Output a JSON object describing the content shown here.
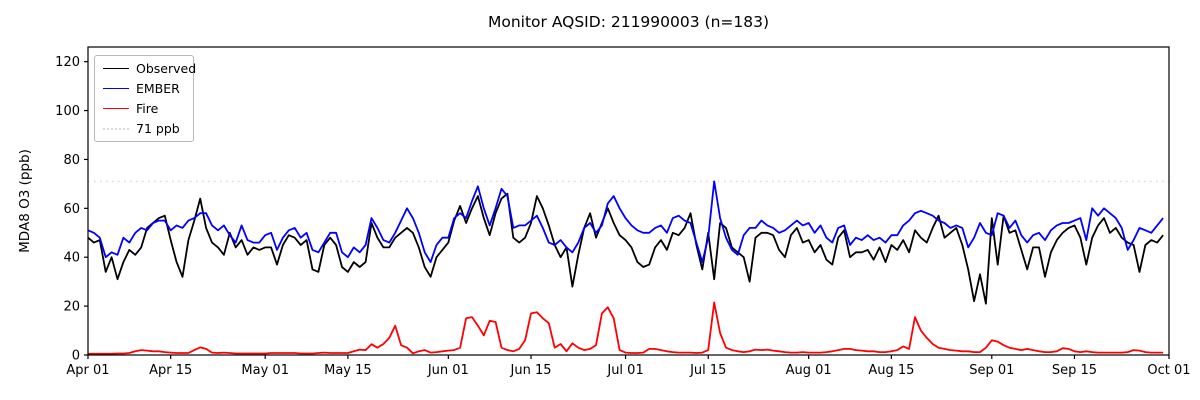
{
  "chart_data": {
    "type": "line",
    "title": "Monitor AQSID: 211990003 (n=183)",
    "xlabel": "",
    "ylabel": "MDA8 O3 (ppb)",
    "ylim": [
      0,
      126
    ],
    "yticks": [
      0,
      20,
      40,
      60,
      80,
      100,
      120
    ],
    "xtick_labels": [
      "Apr 01",
      "Apr 15",
      "May 01",
      "May 15",
      "Jun 01",
      "Jun 15",
      "Jul 01",
      "Jul 15",
      "Aug 01",
      "Aug 15",
      "Sep 01",
      "Sep 15",
      "Oct 01"
    ],
    "xtick_days": [
      0,
      14,
      30,
      44,
      61,
      75,
      91,
      105,
      122,
      136,
      153,
      167,
      183
    ],
    "x_range_days": 183,
    "n_points": 183,
    "date_start": "Apr 01",
    "date_end": "Sep 30",
    "grid": false,
    "legend_position": "upper left",
    "axis_color": "#000000",
    "threshold": {
      "label": "71 ppb",
      "value": 71,
      "color": "#d9d9d9",
      "style": "dotted"
    },
    "legend": [
      {
        "label": "Observed",
        "color": "#000000",
        "style": "solid"
      },
      {
        "label": "EMBER",
        "color": "#0000ff",
        "style": "solid"
      },
      {
        "label": "Fire",
        "color": "#ff0000",
        "style": "solid"
      },
      {
        "label": "71 ppb",
        "color": "#d9d9d9",
        "style": "dotted"
      }
    ],
    "series": [
      {
        "name": "Observed",
        "color": "#000000",
        "values": [
          48,
          46,
          47,
          34,
          40,
          31,
          38,
          43,
          41,
          44,
          52,
          54,
          56,
          57,
          47,
          38,
          32,
          47,
          55,
          64,
          52,
          46,
          44,
          41,
          50,
          44,
          47,
          41,
          44,
          43,
          44,
          44,
          37,
          45,
          49,
          48,
          45,
          47,
          35,
          34,
          45,
          48,
          45,
          36,
          34,
          38,
          36,
          38,
          54,
          48,
          44,
          44,
          48,
          50,
          52,
          50,
          44,
          36,
          32,
          40,
          43,
          46,
          55,
          61,
          54,
          60,
          65,
          56,
          49,
          58,
          64,
          66,
          48,
          46,
          48,
          54,
          65,
          60,
          53,
          45,
          40,
          44,
          28,
          41,
          52,
          58,
          48,
          54,
          60,
          54,
          49,
          47,
          44,
          38,
          36,
          37,
          44,
          47,
          43,
          50,
          49,
          52,
          58,
          45,
          35,
          50,
          31,
          54,
          52,
          44,
          42,
          40,
          30,
          48,
          50,
          50,
          49,
          43,
          40,
          49,
          52,
          46,
          47,
          42,
          45,
          39,
          37,
          48,
          51,
          40,
          42,
          42,
          43,
          39,
          44,
          38,
          45,
          43,
          47,
          42,
          51,
          48,
          46,
          52,
          57,
          48,
          50,
          52,
          45,
          35,
          22,
          33,
          21,
          56,
          37,
          57,
          50,
          51,
          43,
          35,
          44,
          44,
          32,
          42,
          47,
          50,
          52,
          53,
          48,
          37,
          48,
          53,
          56,
          50,
          52,
          48,
          46,
          45,
          34,
          45,
          47,
          46,
          49
        ]
      },
      {
        "name": "EMBER",
        "color": "#0000ff",
        "values": [
          51,
          50,
          48,
          40,
          42,
          41,
          48,
          46,
          50,
          52,
          51,
          54,
          55,
          55,
          51,
          53,
          52,
          55,
          56,
          58,
          58,
          53,
          51,
          53,
          49,
          46,
          53,
          47,
          46,
          46,
          49,
          50,
          43,
          48,
          51,
          52,
          48,
          50,
          43,
          42,
          46,
          50,
          50,
          42,
          40,
          44,
          42,
          45,
          56,
          52,
          47,
          46,
          50,
          55,
          60,
          56,
          50,
          42,
          38,
          45,
          48,
          48,
          56,
          58,
          56,
          63,
          69,
          60,
          53,
          60,
          68,
          65,
          52,
          53,
          53,
          55,
          57,
          52,
          46,
          45,
          47,
          44,
          42,
          46,
          52,
          54,
          50,
          53,
          62,
          65,
          60,
          56,
          53,
          51,
          50,
          50,
          52,
          53,
          50,
          56,
          57,
          55,
          54,
          46,
          38,
          48,
          71,
          56,
          48,
          43,
          41,
          49,
          52,
          52,
          55,
          53,
          52,
          50,
          51,
          53,
          55,
          53,
          54,
          50,
          53,
          48,
          46,
          52,
          53,
          45,
          48,
          47,
          49,
          47,
          48,
          46,
          49,
          49,
          53,
          55,
          58,
          59,
          58,
          57,
          55,
          54,
          52,
          53,
          52,
          44,
          48,
          54,
          50,
          49,
          58,
          57,
          52,
          55,
          49,
          46,
          49,
          50,
          47,
          51,
          53,
          54,
          54,
          55,
          56,
          47,
          60,
          57,
          60,
          58,
          56,
          52,
          43,
          47,
          52,
          51,
          50,
          53,
          56
        ]
      },
      {
        "name": "Fire",
        "color": "#ff0000",
        "values": [
          0.5,
          0.5,
          0.5,
          0.5,
          0.5,
          0.6,
          0.6,
          0.8,
          1.5,
          2,
          1.8,
          1.5,
          1.5,
          1.2,
          1,
          0.8,
          0.8,
          0.8,
          2,
          3.1,
          2.5,
          1,
          0.8,
          1,
          0.8,
          0.6,
          0.6,
          0.6,
          0.6,
          0.6,
          0.6,
          0.8,
          0.8,
          0.8,
          0.8,
          0.8,
          0.6,
          0.6,
          0.6,
          0.8,
          1,
          0.8,
          0.8,
          0.8,
          0.8,
          1.5,
          2.2,
          2,
          4.4,
          3,
          4.5,
          7,
          12,
          4,
          3,
          0.7,
          1.5,
          2,
          1,
          1.2,
          1.5,
          1.8,
          2,
          3,
          15,
          15.5,
          12,
          8,
          14,
          13.5,
          3,
          2,
          1.5,
          2.5,
          6,
          17,
          17.5,
          15,
          13,
          3,
          4.5,
          1.5,
          4.8,
          3,
          2,
          2.5,
          4,
          17,
          19.5,
          15,
          2,
          1,
          0.8,
          0.8,
          1,
          2.5,
          2.5,
          2,
          1.5,
          1.2,
          1,
          1,
          1,
          0.8,
          1,
          2,
          21.5,
          9,
          3,
          2,
          1.5,
          1.2,
          1.5,
          2.2,
          2,
          2.2,
          1.8,
          1.5,
          1.2,
          1,
          1,
          1.2,
          1,
          1,
          1,
          1.2,
          1.5,
          2,
          2.5,
          2.5,
          2,
          1.8,
          1.5,
          1.5,
          1.2,
          1.2,
          1.5,
          2,
          3.5,
          2.5,
          15.5,
          10,
          7,
          4.5,
          3,
          2.5,
          2,
          1.8,
          1.5,
          1.5,
          1.2,
          1.2,
          3,
          6,
          5.5,
          4,
          3,
          2.5,
          2,
          2.5,
          2,
          1.5,
          1.2,
          1.2,
          1.5,
          2.8,
          2.5,
          1.5,
          1.2,
          1.5,
          1.2,
          1,
          1,
          1,
          1,
          1,
          1.2,
          2,
          1.8,
          1.2,
          1,
          1,
          1
        ]
      }
    ]
  }
}
